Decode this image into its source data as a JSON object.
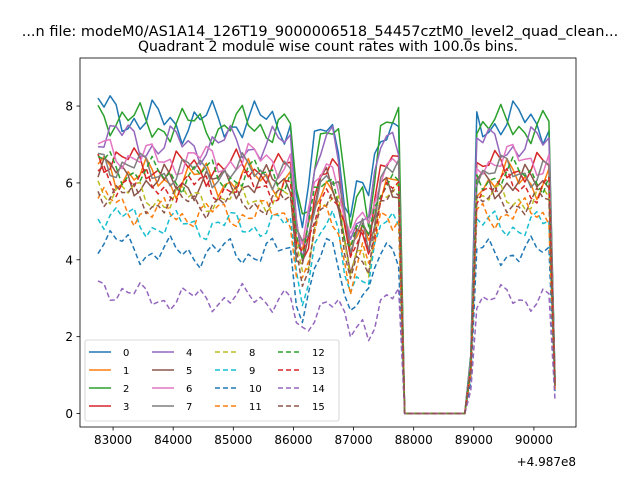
{
  "chart_data": {
    "type": "line",
    "suptitle": "...n file: modeM0/AS1A14_126T19_9000006518_54457cztM0_level2_quad_clean...",
    "title": "Quadrant 2 module wise count rates with 100.0s bins.",
    "xlabel": "",
    "ylabel": "",
    "x_offset_label": "+4.987e8",
    "xlim": [
      82450,
      90700
    ],
    "ylim": [
      -0.35,
      9.25
    ],
    "xticks": [
      83000,
      84000,
      85000,
      86000,
      87000,
      88000,
      89000,
      90000
    ],
    "xtick_labels": [
      "83000",
      "84000",
      "85000",
      "86000",
      "87000",
      "88000",
      "89000",
      "90000"
    ],
    "yticks": [
      0,
      2,
      4,
      6,
      8
    ],
    "ytick_labels": [
      "0",
      "2",
      "4",
      "6",
      "8"
    ],
    "legend_position": "lower-left",
    "x_start": 82750,
    "x_step": 100,
    "x_gap_range": [
      87850,
      88850
    ],
    "series": [
      {
        "name": "0",
        "color": "#1f77b4",
        "dash": "solid",
        "base": 7.6,
        "amp": 0.55,
        "phase": 0.0
      },
      {
        "name": "1",
        "color": "#ff7f0e",
        "dash": "solid",
        "base": 6.1,
        "amp": 0.5,
        "phase": 1.1
      },
      {
        "name": "2",
        "color": "#2ca02c",
        "dash": "solid",
        "base": 7.5,
        "amp": 0.5,
        "phase": 2.3
      },
      {
        "name": "3",
        "color": "#d62728",
        "dash": "solid",
        "base": 6.4,
        "amp": 0.45,
        "phase": 3.1
      },
      {
        "name": "4",
        "color": "#9467bd",
        "dash": "solid",
        "base": 7.0,
        "amp": 0.5,
        "phase": 4.0
      },
      {
        "name": "5",
        "color": "#8c564b",
        "dash": "solid",
        "base": 6.0,
        "amp": 0.45,
        "phase": 5.2
      },
      {
        "name": "6",
        "color": "#e377c2",
        "dash": "solid",
        "base": 6.6,
        "amp": 0.45,
        "phase": 0.7
      },
      {
        "name": "7",
        "color": "#7f7f7f",
        "dash": "solid",
        "base": 6.3,
        "amp": 0.45,
        "phase": 1.9
      },
      {
        "name": "8",
        "color": "#bcbd22",
        "dash": "dashed",
        "base": 5.6,
        "amp": 0.4,
        "phase": 2.7
      },
      {
        "name": "9",
        "color": "#17becf",
        "dash": "dashed",
        "base": 4.9,
        "amp": 0.4,
        "phase": 3.6
      },
      {
        "name": "10",
        "color": "#1f77b4",
        "dash": "dashed",
        "base": 4.2,
        "amp": 0.4,
        "phase": 4.4
      },
      {
        "name": "11",
        "color": "#ff7f0e",
        "dash": "dashed",
        "base": 5.2,
        "amp": 0.4,
        "phase": 5.6
      },
      {
        "name": "12",
        "color": "#2ca02c",
        "dash": "dashed",
        "base": 6.2,
        "amp": 0.45,
        "phase": 0.3
      },
      {
        "name": "13",
        "color": "#d62728",
        "dash": "dashed",
        "base": 5.9,
        "amp": 0.45,
        "phase": 1.5
      },
      {
        "name": "14",
        "color": "#9467bd",
        "dash": "dashed",
        "base": 3.0,
        "amp": 0.35,
        "phase": 2.0
      },
      {
        "name": "15",
        "color": "#8c564b",
        "dash": "dashed",
        "base": 5.5,
        "amp": 0.4,
        "phase": 3.3
      }
    ]
  }
}
